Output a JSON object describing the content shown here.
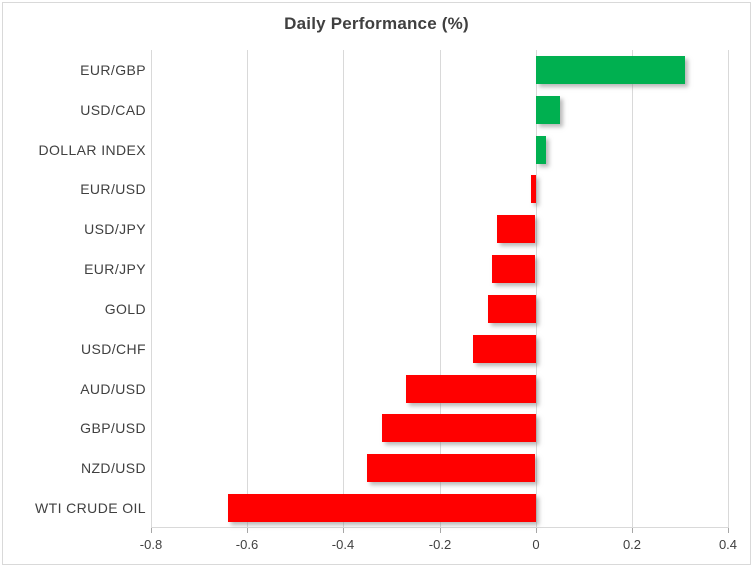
{
  "title": "Daily Performance (%)",
  "chart_data": {
    "type": "bar",
    "orientation": "horizontal",
    "title": "Daily Performance (%)",
    "xlabel": "",
    "ylabel": "",
    "categories": [
      "EUR/GBP",
      "USD/CAD",
      "DOLLAR INDEX",
      "EUR/USD",
      "USD/JPY",
      "EUR/JPY",
      "GOLD",
      "USD/CHF",
      "AUD/USD",
      "GBP/USD",
      "NZD/USD",
      "WTI CRUDE OIL"
    ],
    "values": [
      0.31,
      0.05,
      0.02,
      -0.01,
      -0.08,
      -0.09,
      -0.1,
      -0.13,
      -0.27,
      -0.32,
      -0.35,
      -0.64
    ],
    "xlim": [
      -0.8,
      0.4
    ],
    "xticks": [
      -0.8,
      -0.6,
      -0.4,
      -0.2,
      0,
      0.2,
      0.4
    ],
    "xtick_labels": [
      "-0.8",
      "-0.6",
      "-0.4",
      "-0.2",
      "0",
      "0.2",
      "0.4"
    ],
    "grid": true,
    "legend": false,
    "colors": {
      "positive": "#00B050",
      "negative": "#FF0000",
      "text": "#404040",
      "gridline": "#D9D9D9",
      "tick": "#A6A6A6",
      "border": "#D9D9D9",
      "background": "#FFFFFF"
    }
  }
}
